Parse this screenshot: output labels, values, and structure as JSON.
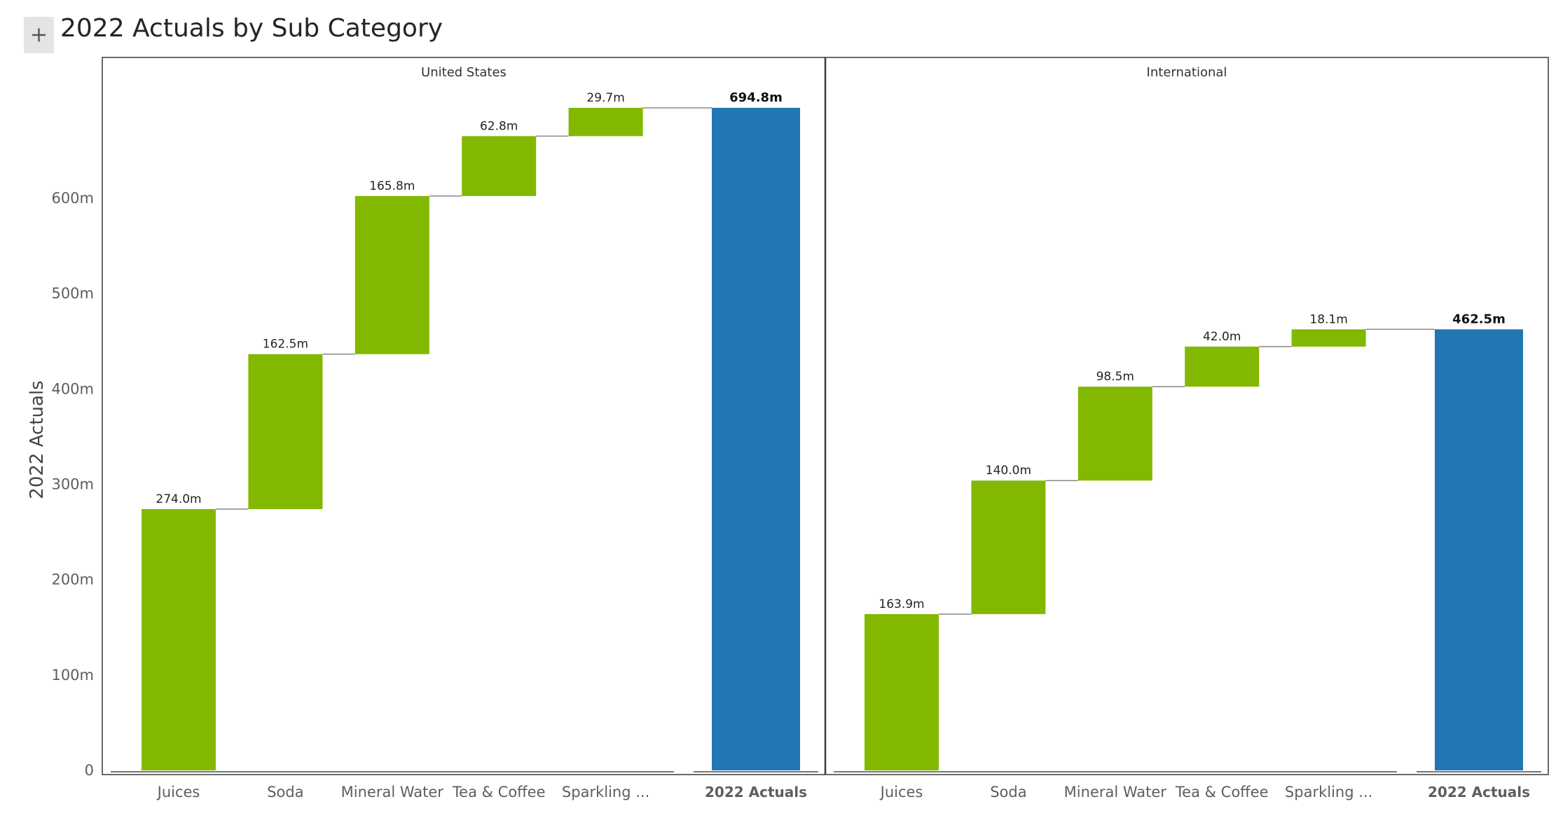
{
  "header": {
    "title": "2022 Actuals by Sub Category",
    "expand_icon": "plus-icon"
  },
  "colors": {
    "increase": "#82b800",
    "total": "#2276b4",
    "axis_text": "#605e5c",
    "frame": "#3a3a3a"
  },
  "chart_data": {
    "type": "bar",
    "subtype": "waterfall",
    "title": "2022 Actuals by Sub Category",
    "ylabel": "2022 Actuals",
    "ylim": [
      0,
      694.8
    ],
    "y_ticks": [
      {
        "value": 0,
        "label": "0"
      },
      {
        "value": 100,
        "label": "100m"
      },
      {
        "value": 200,
        "label": "200m"
      },
      {
        "value": 300,
        "label": "300m"
      },
      {
        "value": 400,
        "label": "400m"
      },
      {
        "value": 500,
        "label": "500m"
      },
      {
        "value": 600,
        "label": "600m"
      }
    ],
    "panels": [
      {
        "name": "United States",
        "categories": [
          "Juices",
          "Soda",
          "Mineral Water",
          "Tea & Coffee",
          "Sparkling ..."
        ],
        "values": [
          274.0,
          162.5,
          165.8,
          62.8,
          29.7
        ],
        "value_labels": [
          "274.0m",
          "162.5m",
          "165.8m",
          "62.8m",
          "29.7m"
        ],
        "total_label": "2022 Actuals",
        "total": 694.8,
        "total_value_label": "694.8m"
      },
      {
        "name": "International",
        "categories": [
          "Juices",
          "Soda",
          "Mineral Water",
          "Tea & Coffee",
          "Sparkling ..."
        ],
        "values": [
          163.9,
          140.0,
          98.5,
          42.0,
          18.1
        ],
        "value_labels": [
          "163.9m",
          "140.0m",
          "98.5m",
          "42.0m",
          "18.1m"
        ],
        "total_label": "2022 Actuals",
        "total": 462.5,
        "total_value_label": "462.5m"
      }
    ]
  }
}
